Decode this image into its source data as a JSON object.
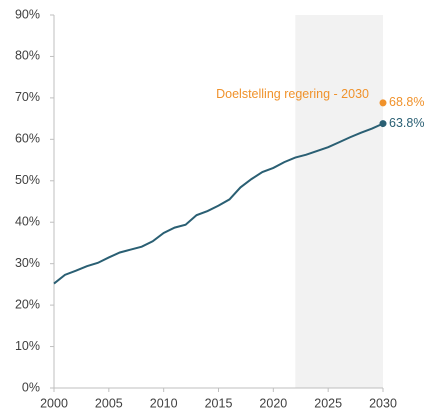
{
  "chart_data": {
    "type": "line",
    "x": [
      2000,
      2001,
      2002,
      2003,
      2004,
      2005,
      2006,
      2007,
      2008,
      2009,
      2010,
      2011,
      2012,
      2013,
      2014,
      2015,
      2016,
      2017,
      2018,
      2019,
      2020,
      2021,
      2022,
      2023,
      2024,
      2025,
      2026,
      2027,
      2028,
      2029,
      2030
    ],
    "values": [
      25.2,
      27.3,
      28.3,
      29.4,
      30.2,
      31.5,
      32.7,
      33.4,
      34.1,
      35.4,
      37.4,
      38.7,
      39.4,
      41.7,
      42.7,
      44.0,
      45.5,
      48.4,
      50.4,
      52.1,
      53.1,
      54.5,
      55.6,
      56.3,
      57.2,
      58.1,
      59.3,
      60.5,
      61.6,
      62.6,
      63.8
    ],
    "color": "#2a5f73",
    "end_value_label": "63.8%",
    "target": {
      "label": "Doelstelling regering - 2030",
      "x": 2030,
      "value": 68.8,
      "value_label": "68.8%",
      "color": "#f0922b"
    },
    "shaded_region": {
      "x": [
        2022,
        2030
      ],
      "color": "#f2f2f2"
    },
    "xlim": [
      2000,
      2030
    ],
    "xticks": [
      2000,
      2005,
      2010,
      2015,
      2020,
      2025,
      2030
    ],
    "ylim": [
      0,
      90
    ],
    "yticks": [
      {
        "value": 0,
        "label": "0%"
      },
      {
        "value": 10,
        "label": "10%"
      },
      {
        "value": 20,
        "label": "20%"
      },
      {
        "value": 30,
        "label": "30%"
      },
      {
        "value": 40,
        "label": "40%"
      },
      {
        "value": 50,
        "label": "50%"
      },
      {
        "value": 60,
        "label": "60%"
      },
      {
        "value": 70,
        "label": "70%"
      },
      {
        "value": 80,
        "label": "80%"
      },
      {
        "value": 90,
        "label": "90%"
      }
    ]
  }
}
